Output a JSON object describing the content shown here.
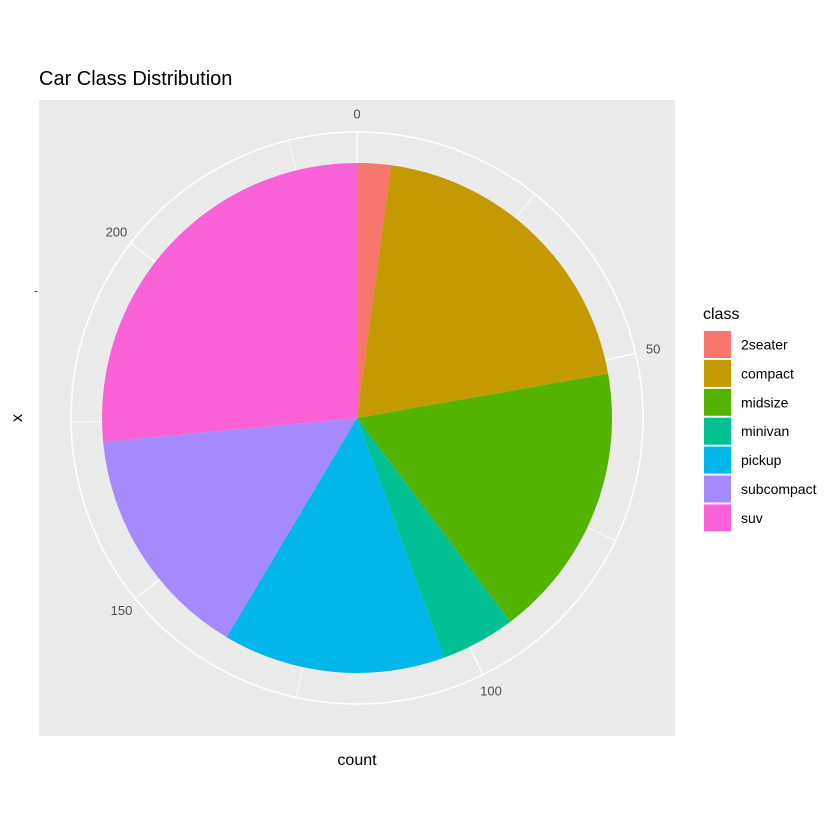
{
  "chart_data": {
    "type": "pie",
    "title": "Car Class Distribution",
    "xlabel": "count",
    "ylabel": "x",
    "y_tick_label": "-",
    "categories": [
      "2seater",
      "compact",
      "midsize",
      "minivan",
      "pickup",
      "subcompact",
      "suv"
    ],
    "values": [
      5,
      47,
      41,
      11,
      33,
      35,
      62
    ],
    "colors": [
      "#F8766D",
      "#C49A00",
      "#53B400",
      "#00C094",
      "#00B6EB",
      "#A58AFF",
      "#FB61D7"
    ],
    "radial_ticks": [
      0,
      50,
      100,
      150,
      200
    ],
    "radial_ticks_labels": [
      "0",
      "50",
      "100",
      "150",
      "200"
    ],
    "legend": {
      "title": "class",
      "position": "right"
    },
    "panel_background": "#EBEBEB",
    "grid": true
  }
}
